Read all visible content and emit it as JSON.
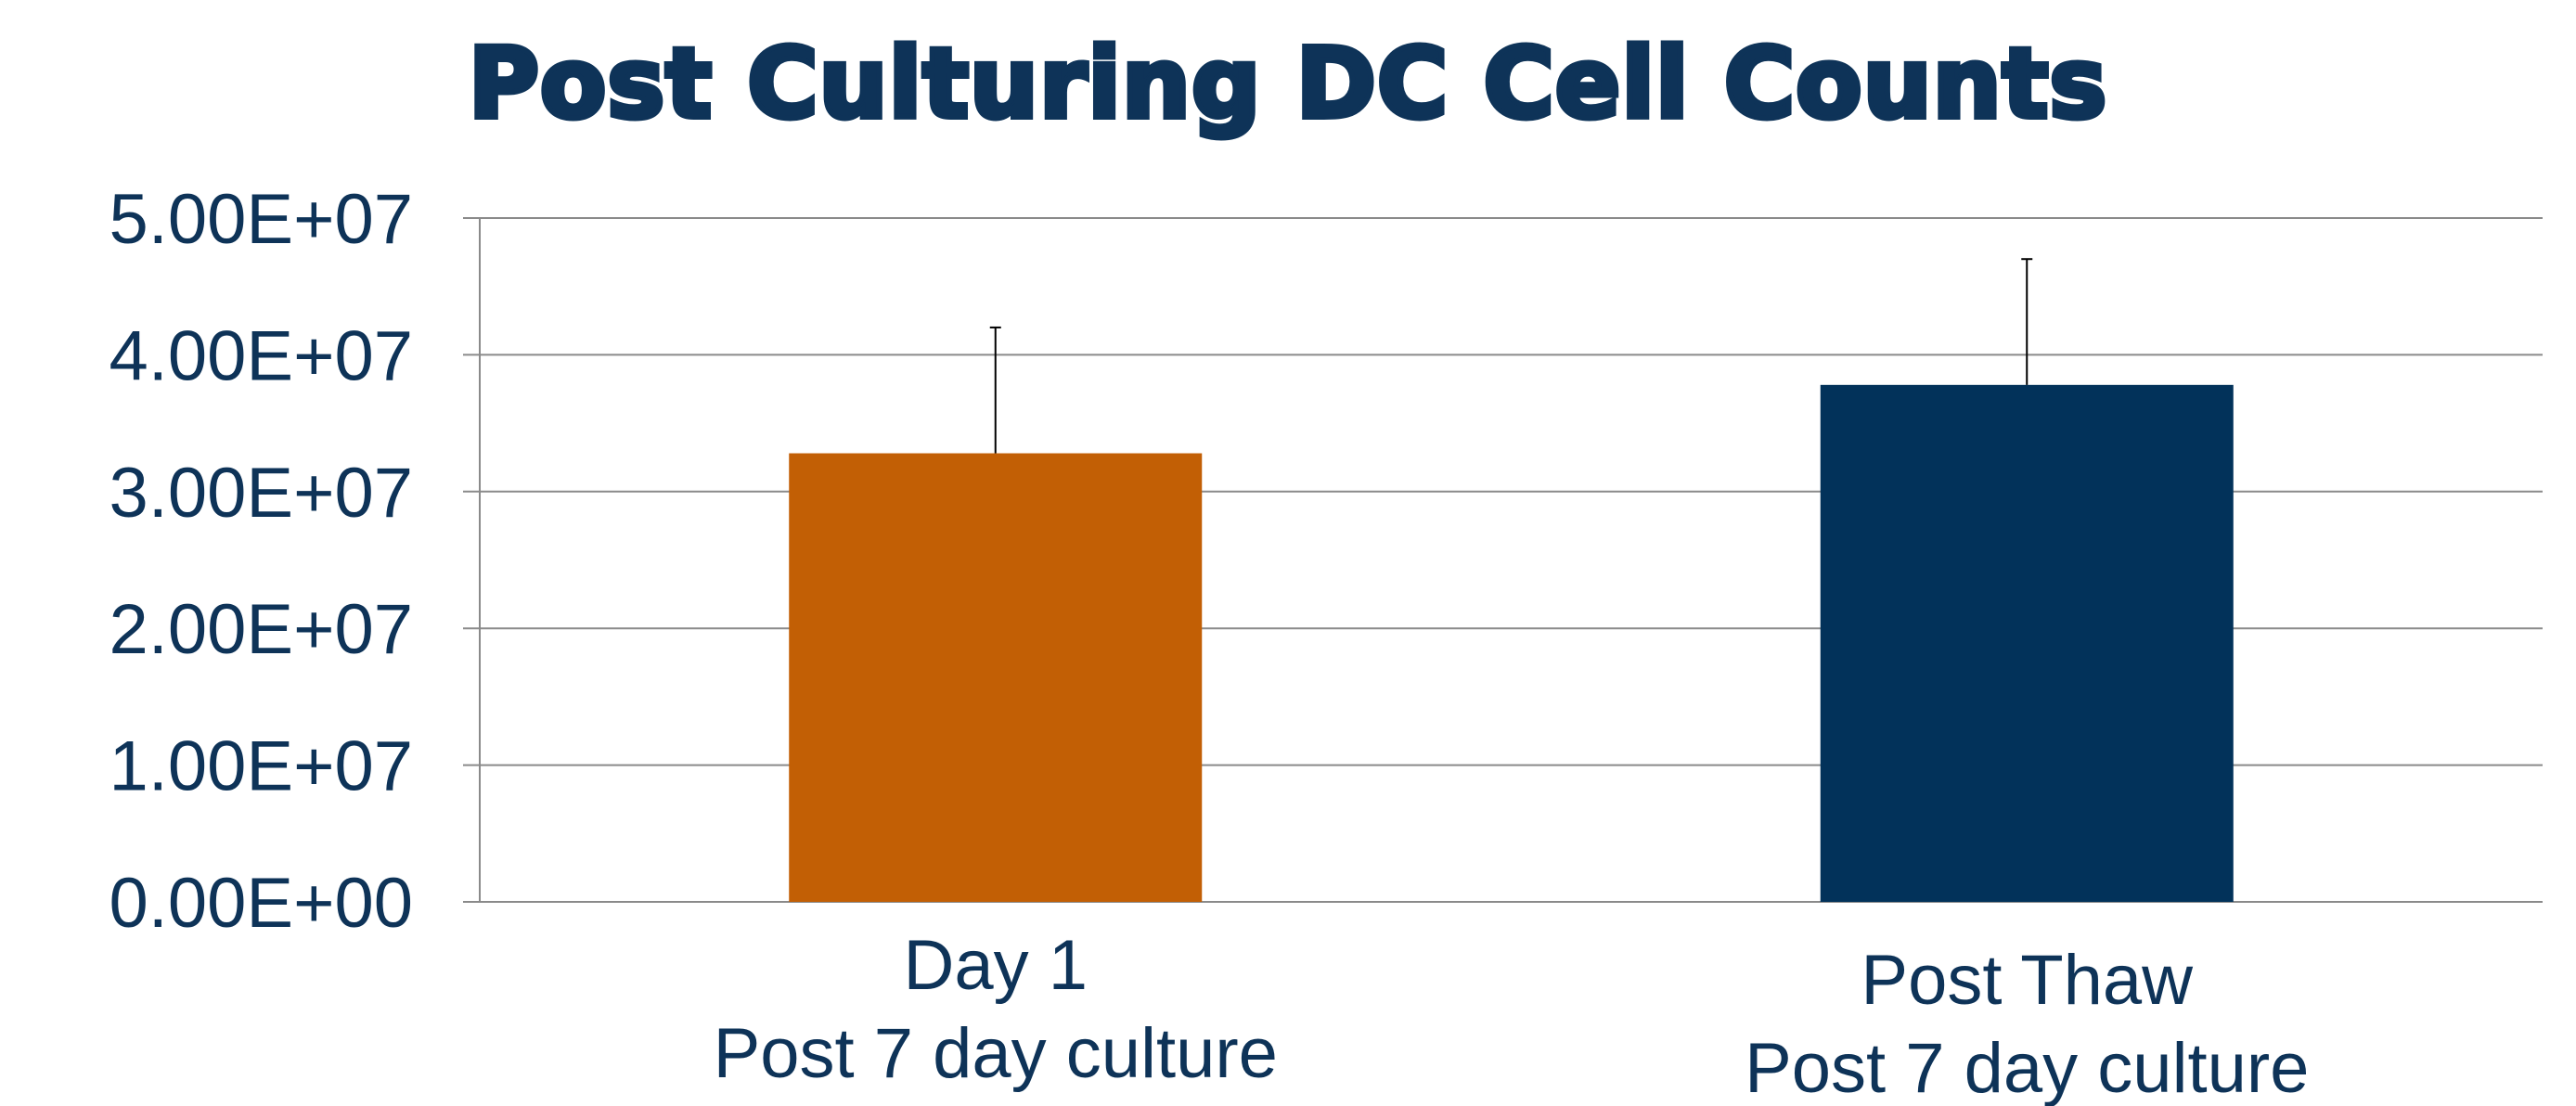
{
  "chart_data": {
    "type": "bar",
    "title": "Post Culturing DC Cell Counts",
    "xlabel": "",
    "ylabel": "",
    "categories": [
      [
        "Day 1",
        "Post 7 day culture"
      ],
      [
        "Post Thaw",
        "Post 7 day culture"
      ]
    ],
    "values": [
      32800000,
      37800000
    ],
    "error_plus": [
      9200000,
      9200000
    ],
    "colors": [
      "#c25f05",
      "#02325a"
    ],
    "ylim": [
      0,
      50000000
    ],
    "yticks": [
      0,
      10000000,
      20000000,
      30000000,
      40000000,
      50000000
    ],
    "ytick_labels": [
      "0.00E+00",
      "1.00E+07",
      "2.00E+07",
      "3.00E+07",
      "4.00E+07",
      "5.00E+07"
    ],
    "grid": true,
    "legend": "none"
  }
}
